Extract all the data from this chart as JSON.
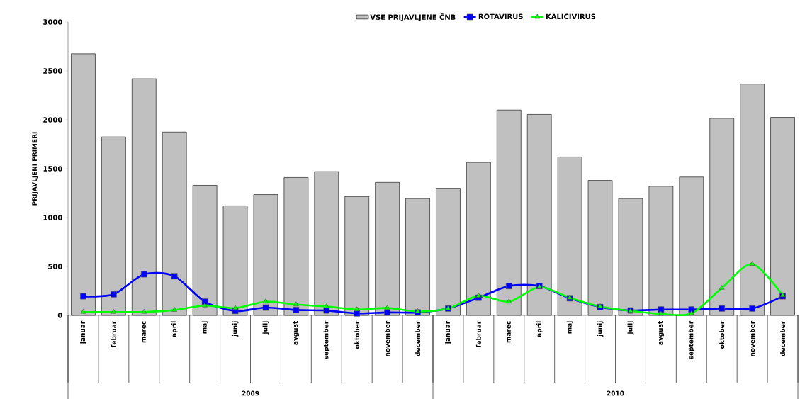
{
  "chart_data": {
    "type": "bar",
    "ylabel": "PRIJAVLJENI PRIMERI",
    "categories": [
      "januar",
      "februar",
      "marec",
      "april",
      "maj",
      "junij",
      "julij",
      "avgust",
      "september",
      "oktober",
      "november",
      "december",
      "januar",
      "februar",
      "marec",
      "april",
      "maj",
      "junij",
      "julij",
      "avgust",
      "september",
      "oktober",
      "november",
      "december"
    ],
    "series": [
      {
        "name": "VSE PRIJAVLJENE ČNB",
        "color": "#c0c0c0",
        "values": [
          2675,
          1825,
          2420,
          1875,
          1330,
          1120,
          1235,
          1410,
          1470,
          1215,
          1360,
          1195,
          1300,
          1565,
          2100,
          2055,
          1620,
          1380,
          1195,
          1320,
          1415,
          2015,
          2365,
          2025
        ]
      },
      {
        "name": "ROTAVIRUS",
        "type": "line",
        "color": "#0000ff",
        "marker": "square",
        "values": [
          195,
          215,
          420,
          400,
          140,
          45,
          80,
          55,
          50,
          20,
          30,
          30,
          70,
          180,
          300,
          300,
          175,
          85,
          50,
          60,
          60,
          70,
          70,
          195
        ]
      },
      {
        "name": "KALICIVIRUS",
        "type": "line",
        "color": "#00ff00",
        "marker": "triangle",
        "values": [
          35,
          35,
          35,
          55,
          100,
          75,
          140,
          110,
          90,
          60,
          75,
          40,
          70,
          200,
          140,
          290,
          180,
          90,
          45,
          15,
          20,
          280,
          525,
          205
        ]
      }
    ],
    "ylim": [
      0,
      3000
    ],
    "yticks": [
      0,
      500,
      1000,
      1500,
      2000,
      2500,
      3000
    ],
    "legend": "top",
    "annotations": [
      "2009",
      "2010"
    ]
  }
}
